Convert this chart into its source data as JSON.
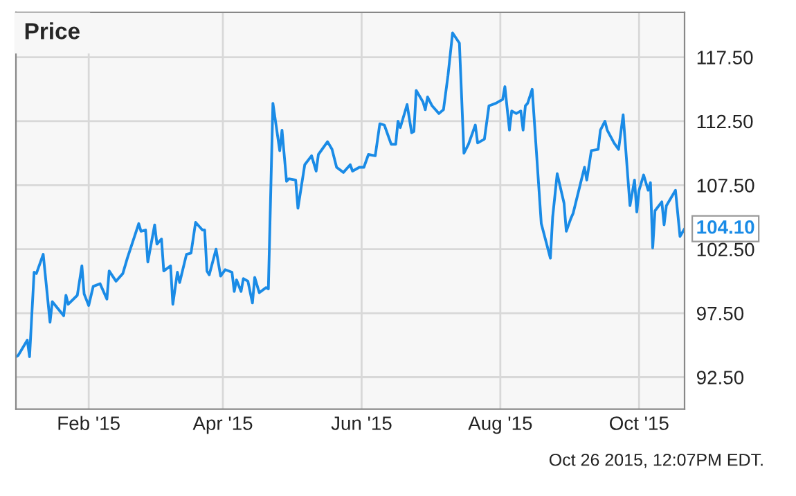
{
  "chart_data": {
    "type": "line",
    "title": "Price",
    "x": [
      "2014-12-31",
      "2015-01-01",
      "2015-01-05",
      "2015-01-06",
      "2015-01-08",
      "2015-01-09",
      "2015-01-12",
      "2015-01-15",
      "2015-01-16",
      "2015-01-21",
      "2015-01-22",
      "2015-01-23",
      "2015-01-27",
      "2015-01-29",
      "2015-01-30",
      "2015-02-01",
      "2015-02-03",
      "2015-02-06",
      "2015-02-09",
      "2015-02-10",
      "2015-02-13",
      "2015-02-16",
      "2015-02-18",
      "2015-02-23",
      "2015-02-24",
      "2015-02-26",
      "2015-02-27",
      "2015-03-02",
      "2015-03-03",
      "2015-03-05",
      "2015-03-06",
      "2015-03-09",
      "2015-03-10",
      "2015-03-12",
      "2015-03-13",
      "2015-03-16",
      "2015-03-18",
      "2015-03-20",
      "2015-03-23",
      "2015-03-24",
      "2015-03-25",
      "2015-03-26",
      "2015-03-29",
      "2015-03-31",
      "2015-04-02",
      "2015-04-05",
      "2015-04-06",
      "2015-04-07",
      "2015-04-09",
      "2015-04-10",
      "2015-04-12",
      "2015-04-14",
      "2015-04-15",
      "2015-04-17",
      "2015-04-20",
      "2015-04-21",
      "2015-04-23",
      "2015-04-26",
      "2015-04-27",
      "2015-04-29",
      "2015-04-30",
      "2015-05-03",
      "2015-05-04",
      "2015-05-07",
      "2015-05-10",
      "2015-05-12",
      "2015-05-13",
      "2015-05-17",
      "2015-05-19",
      "2015-05-21",
      "2015-05-24",
      "2015-05-27",
      "2015-05-28",
      "2015-05-31",
      "2015-06-02",
      "2015-06-04",
      "2015-06-07",
      "2015-06-09",
      "2015-06-11",
      "2015-06-14",
      "2015-06-16",
      "2015-06-17",
      "2015-06-18",
      "2015-06-21",
      "2015-06-23",
      "2015-06-24",
      "2015-06-25",
      "2015-06-28",
      "2015-06-29",
      "2015-06-30",
      "2015-07-02",
      "2015-07-05",
      "2015-07-07",
      "2015-07-09",
      "2015-07-11",
      "2015-07-14",
      "2015-07-16",
      "2015-07-18",
      "2015-07-21",
      "2015-07-22",
      "2015-07-25",
      "2015-07-27",
      "2015-07-30",
      "2015-08-02",
      "2015-08-03",
      "2015-08-05",
      "2015-08-06",
      "2015-08-08",
      "2015-08-10",
      "2015-08-11",
      "2015-08-12",
      "2015-08-13",
      "2015-08-15",
      "2015-08-19",
      "2015-08-23",
      "2015-08-24",
      "2015-08-26",
      "2015-08-29",
      "2015-08-30",
      "2015-09-01",
      "2015-09-02",
      "2015-09-07",
      "2015-09-08",
      "2015-09-10",
      "2015-09-13",
      "2015-09-14",
      "2015-09-16",
      "2015-09-17",
      "2015-09-20",
      "2015-09-22",
      "2015-09-24",
      "2015-09-27",
      "2015-09-29",
      "2015-09-30",
      "2015-10-01",
      "2015-10-03",
      "2015-10-05",
      "2015-10-06",
      "2015-10-07",
      "2015-10-08",
      "2015-10-11",
      "2015-10-12",
      "2015-10-13",
      "2015-10-17",
      "2015-10-19",
      "2015-10-21"
    ],
    "series": [
      {
        "color": "#1a8be6",
        "values": [
          94.1,
          94.2,
          95.4,
          94.1,
          100.7,
          100.6,
          102.1,
          96.8,
          98.4,
          97.3,
          98.9,
          98.2,
          98.9,
          101.2,
          99.0,
          98.1,
          99.6,
          99.8,
          98.6,
          100.8,
          100.0,
          100.6,
          101.8,
          104.5,
          103.9,
          104.0,
          101.5,
          104.4,
          102.9,
          103.3,
          100.8,
          101.2,
          98.2,
          100.7,
          99.9,
          102.1,
          102.2,
          104.6,
          104.0,
          104.0,
          100.8,
          100.5,
          102.5,
          100.4,
          100.9,
          100.7,
          99.2,
          100.1,
          99.2,
          100.2,
          100.0,
          98.3,
          100.3,
          99.1,
          99.5,
          99.4,
          113.9,
          110.2,
          111.8,
          107.8,
          108.0,
          107.9,
          105.7,
          109.1,
          109.8,
          108.6,
          109.9,
          110.9,
          110.3,
          108.9,
          108.5,
          109.1,
          108.6,
          108.9,
          108.9,
          109.9,
          109.8,
          112.3,
          112.2,
          110.7,
          110.7,
          112.5,
          112.0,
          113.8,
          111.6,
          111.7,
          114.9,
          114.0,
          113.4,
          114.4,
          113.7,
          113.1,
          113.4,
          116.1,
          119.4,
          118.6,
          110.0,
          110.7,
          112.2,
          110.8,
          111.1,
          113.7,
          113.9,
          114.2,
          115.2,
          111.8,
          113.3,
          113.1,
          113.3,
          111.8,
          113.7,
          113.9,
          115.0,
          104.5,
          101.8,
          105.0,
          108.4,
          106.1,
          103.9,
          104.9,
          105.3,
          108.9,
          107.9,
          110.2,
          110.3,
          111.8,
          112.5,
          111.8,
          110.8,
          110.3,
          113.0,
          105.9,
          107.9,
          105.4,
          107.1,
          108.3,
          107.1,
          107.7,
          102.6,
          105.5,
          106.2,
          104.4,
          105.9,
          107.1,
          103.5,
          104.1
        ]
      }
    ],
    "xlim": [
      "2014-12-31",
      "2015-10-21"
    ],
    "xticks": [
      {
        "value": "2015-02-01",
        "label": "Feb '15"
      },
      {
        "value": "2015-04-01",
        "label": "Apr '15"
      },
      {
        "value": "2015-06-01",
        "label": "Jun '15"
      },
      {
        "value": "2015-08-01",
        "label": "Aug '15"
      },
      {
        "value": "2015-10-01",
        "label": "Oct '15"
      }
    ],
    "ylim": [
      90,
      121
    ],
    "yticks": [
      {
        "value": 92.5,
        "label": "92.50"
      },
      {
        "value": 97.5,
        "label": "97.50"
      },
      {
        "value": 102.5,
        "label": "102.50"
      },
      {
        "value": 107.5,
        "label": "107.50"
      },
      {
        "value": 112.5,
        "label": "112.50"
      },
      {
        "value": 117.5,
        "label": "117.50"
      }
    ],
    "grid": true,
    "legend": false,
    "marker": "none",
    "line_style": "solid",
    "annotations": [
      {
        "text": "104.10",
        "x": "2015-10-21",
        "y": 104.1
      },
      "Oct 26 2015, 12:07PM EDT."
    ]
  }
}
